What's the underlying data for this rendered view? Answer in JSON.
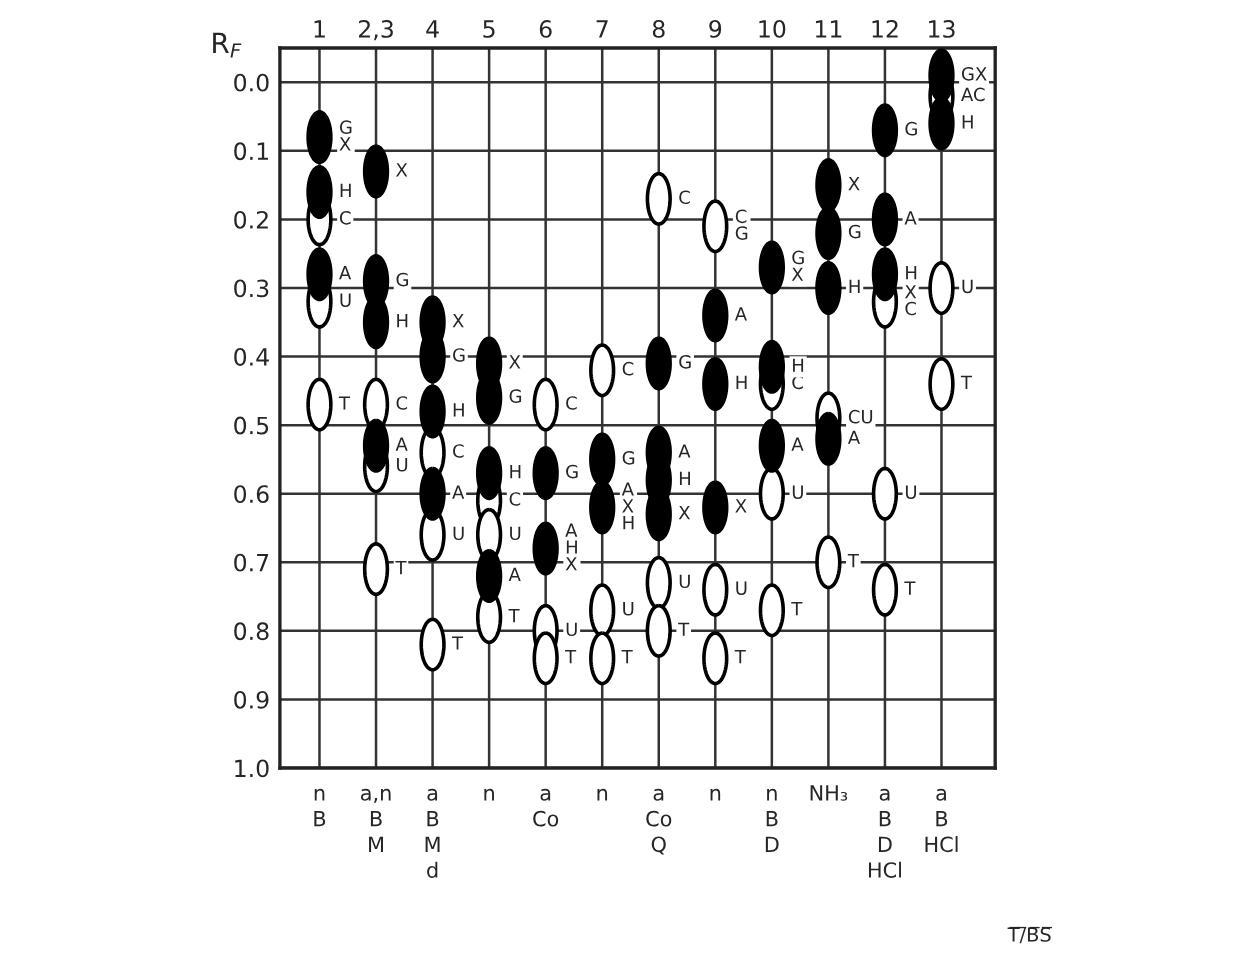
{
  "chart_data": {
    "type": "scatter",
    "ylabel": "R$_{F}$",
    "categories": [
      "1",
      "2,3",
      "4",
      "5",
      "6",
      "7",
      "8",
      "9",
      "10",
      "11",
      "12",
      "13"
    ],
    "ylim": [
      1.0,
      -0.05
    ],
    "yticks": [
      {
        "value": 0,
        "label": "0.0"
      },
      {
        "value": 0.1,
        "label": "0.1"
      },
      {
        "value": 0.2,
        "label": "0.2"
      },
      {
        "value": 0.3,
        "label": "0.3"
      },
      {
        "value": 0.4,
        "label": "0.4"
      },
      {
        "value": 0.5,
        "label": "0.5"
      },
      {
        "value": 0.6,
        "label": "0.6"
      },
      {
        "value": 0.7,
        "label": "0.7"
      },
      {
        "value": 0.8,
        "label": "0.8"
      },
      {
        "value": 0.9,
        "label": "0.9"
      },
      {
        "value": 1.0,
        "label": "1.0"
      }
    ],
    "grid": true,
    "marker": "circle",
    "series": [
      {
        "color": "#ffffff",
        "x": [
          "1",
          "1",
          "1",
          "2,3",
          "2,3",
          "2,3",
          "4",
          "4",
          "4",
          "5",
          "5",
          "5",
          "6",
          "6",
          "6",
          "7",
          "7",
          "7",
          "8",
          "8",
          "8",
          "9",
          "9",
          "9",
          "10",
          "10",
          "10",
          "11",
          "11",
          "12",
          "12",
          "12",
          "13",
          "13",
          "13"
        ],
        "values": [
          0.2,
          0.32,
          0.47,
          0.47,
          0.56,
          0.71,
          0.54,
          0.66,
          0.82,
          0.61,
          0.66,
          0.78,
          0.47,
          0.8,
          0.84,
          0.42,
          0.77,
          0.84,
          0.17,
          0.73,
          0.8,
          0.21,
          0.74,
          0.84,
          0.44,
          0.6,
          0.77,
          0.49,
          0.7,
          0.32,
          0.6,
          0.74,
          0.02,
          0.3,
          0.44
        ],
        "value_labels": [
          "C",
          "U",
          "T",
          "C",
          "U",
          "T",
          "C",
          "U",
          "T",
          "C",
          "U",
          "T",
          "C",
          "U",
          "T",
          "C",
          "U",
          "T",
          "C",
          "U",
          "T",
          "C\nG",
          "U",
          "T",
          "C",
          "U",
          "T",
          "CU",
          "T",
          "X\nC",
          "U",
          "T",
          "AC",
          "U",
          "T"
        ]
      },
      {
        "color": "#000000",
        "x": [
          "1",
          "1",
          "1",
          "2,3",
          "2,3",
          "2,3",
          "2,3",
          "4",
          "4",
          "4",
          "4",
          "5",
          "5",
          "5",
          "5",
          "6",
          "6",
          "7",
          "7",
          "8",
          "8",
          "8",
          "8",
          "9",
          "9",
          "9",
          "10",
          "10",
          "10",
          "11",
          "11",
          "11",
          "11",
          "12",
          "12",
          "12",
          "13",
          "13"
        ],
        "values": [
          0.08,
          0.16,
          0.28,
          0.13,
          0.29,
          0.35,
          0.53,
          0.35,
          0.4,
          0.48,
          0.6,
          0.41,
          0.46,
          0.57,
          0.72,
          0.57,
          0.68,
          0.55,
          0.62,
          0.41,
          0.54,
          0.58,
          0.63,
          0.34,
          0.44,
          0.62,
          0.27,
          0.415,
          0.53,
          0.15,
          0.22,
          0.3,
          0.52,
          0.07,
          0.2,
          0.28,
          -0.01,
          0.06
        ],
        "value_labels": [
          "G\nX",
          "H",
          "A",
          "X",
          "G",
          "H",
          "A",
          "X",
          "G",
          "H",
          "A",
          "X",
          "G",
          "H",
          "A",
          "G",
          "A\nH\nX",
          "G",
          "A\nX\nH",
          "G",
          "A",
          "H",
          "X",
          "A",
          "H",
          "X",
          "G\nX",
          "H",
          "A",
          "X",
          "G",
          "H",
          "A",
          "G",
          "A",
          "H",
          "GX",
          "H"
        ]
      }
    ],
    "annotations": [
      "n\nB",
      "a,n\nB\nM",
      "a\nB\nM\nd",
      "n",
      "a\nCo",
      "n",
      "a\nCo\nQ",
      "n",
      "n\nB\nD",
      "NH₃",
      "a\nB\nD\nHCl",
      "a\nB\nHCl",
      "T̅/̅B̅S̅"
    ]
  }
}
